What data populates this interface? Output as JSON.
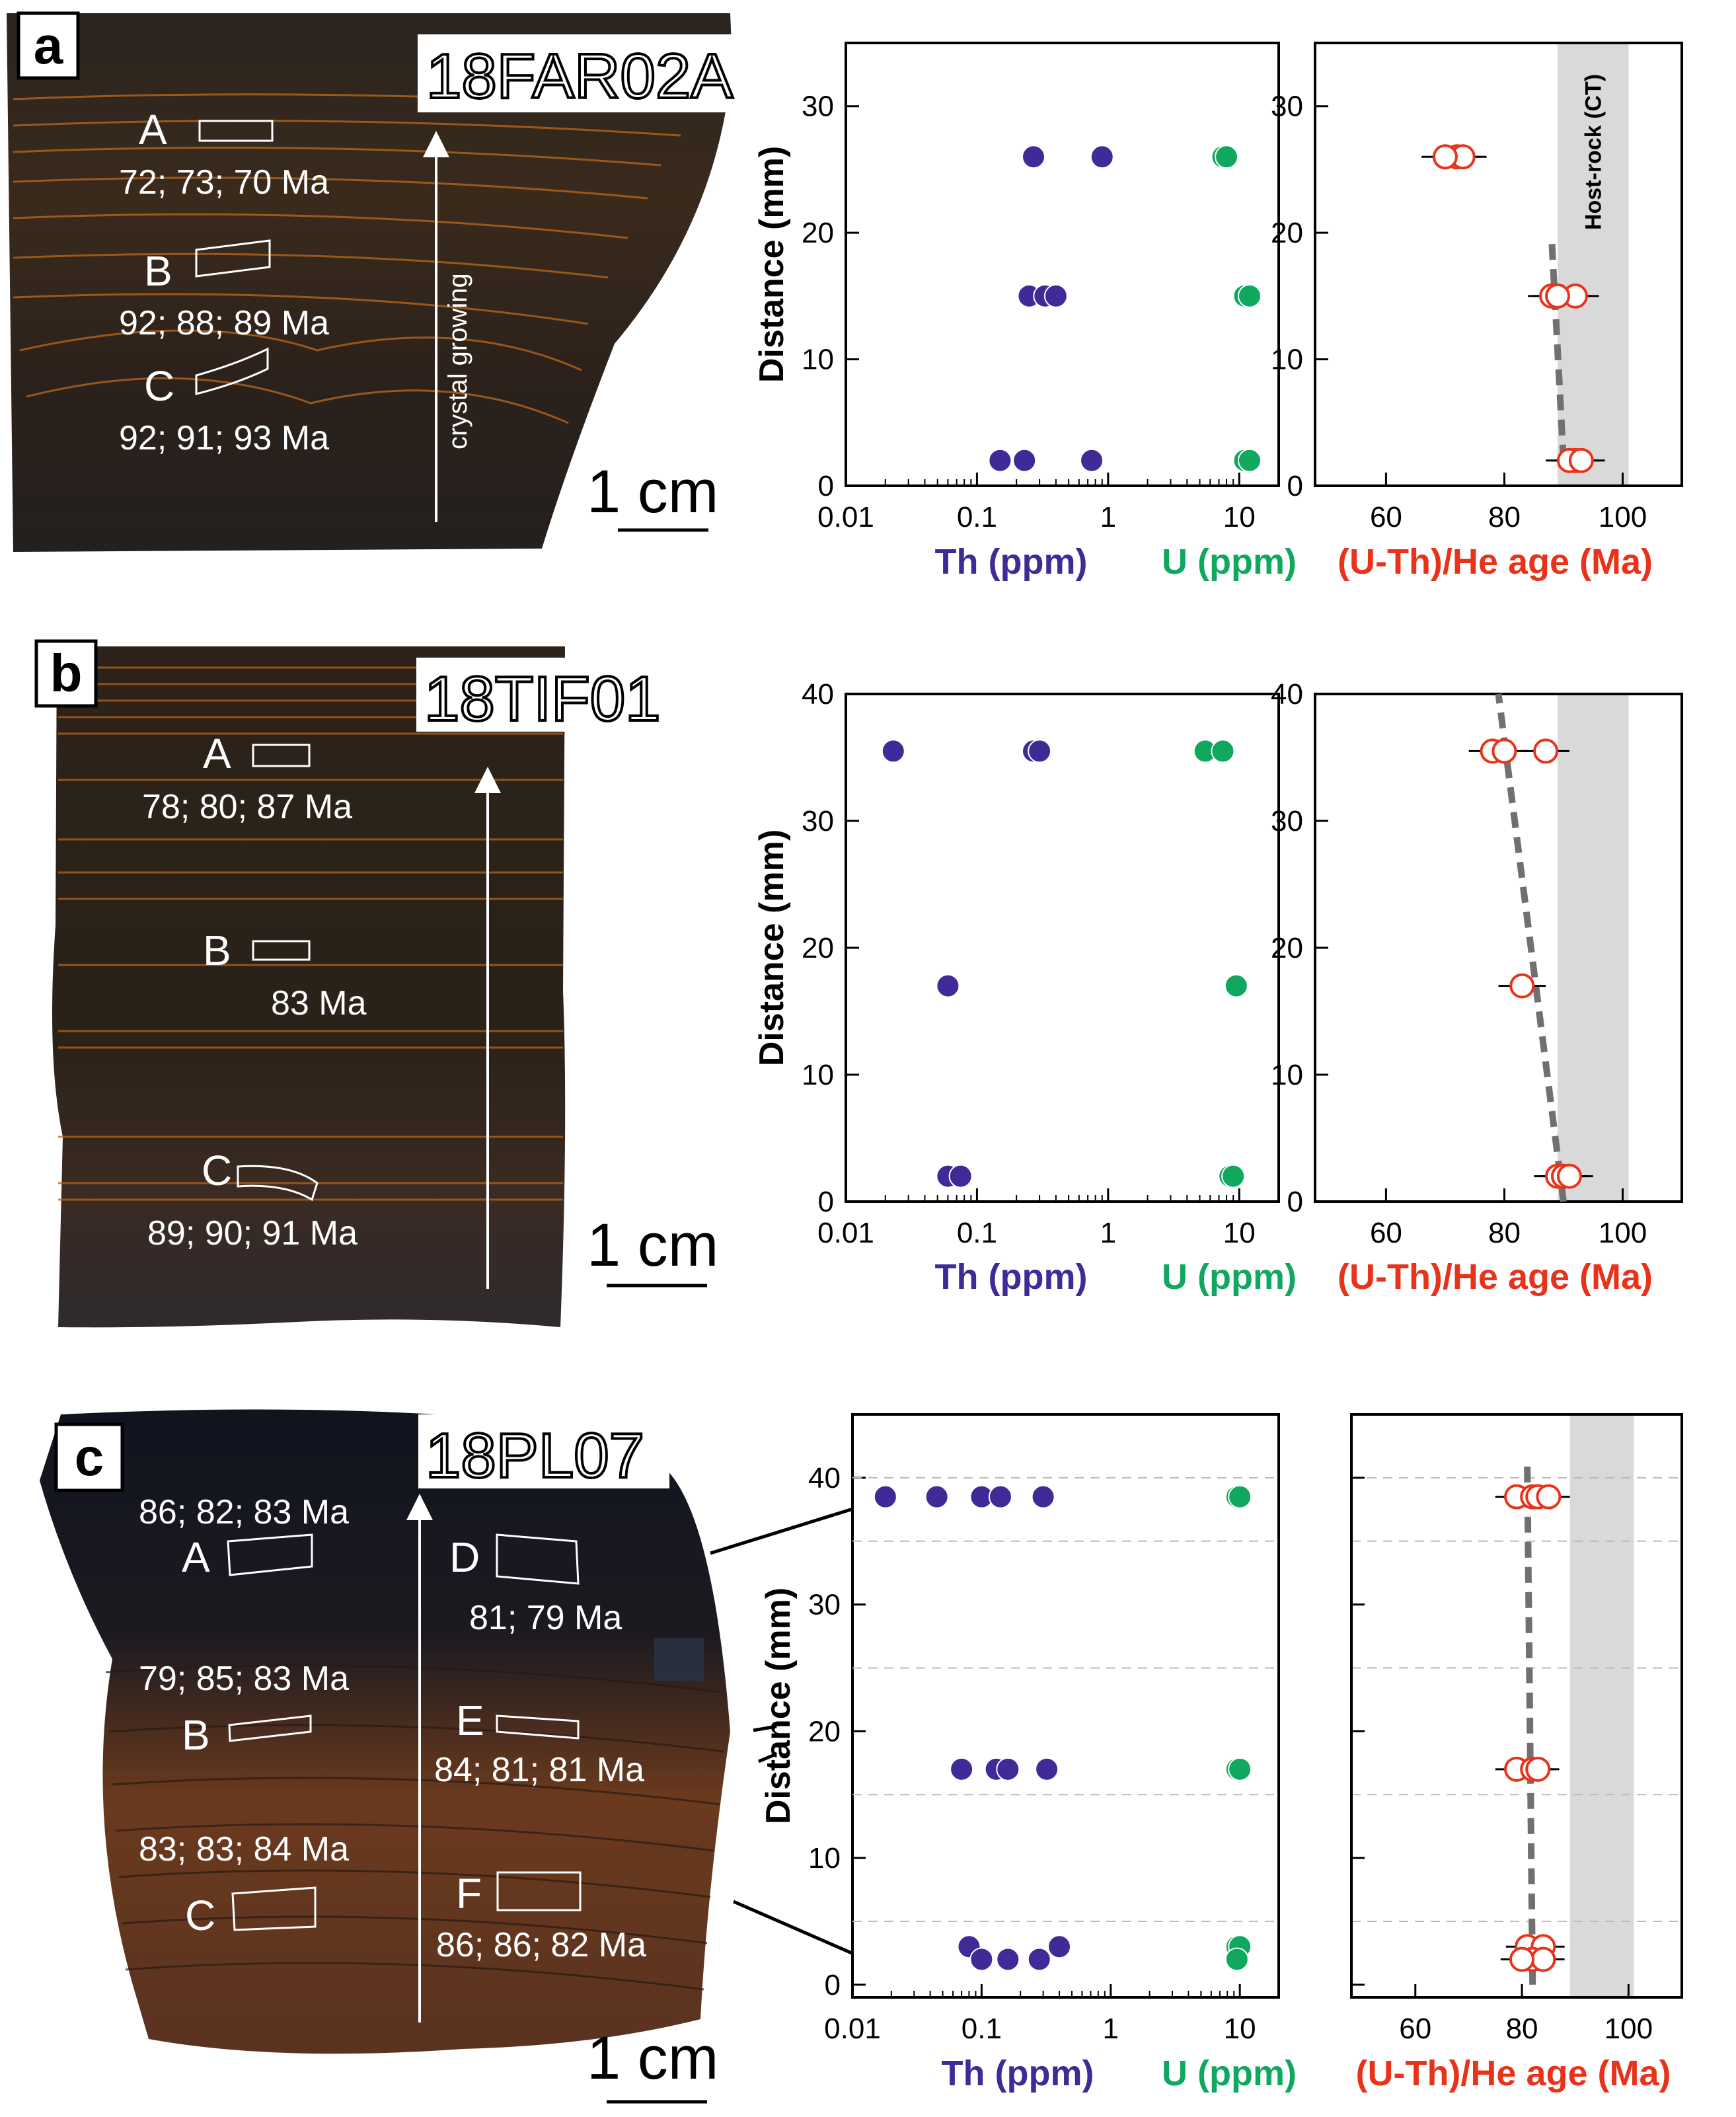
{
  "chart_data": [
    {
      "type": "scatter",
      "panel": "a",
      "sample": "18FAR02A",
      "photo_labels": {
        "regions": [
          {
            "letter": "A",
            "ages": "72; 73; 70 Ma"
          },
          {
            "letter": "B",
            "ages": "92; 88; 89 Ma"
          },
          {
            "letter": "C",
            "ages": "92; 91; 93 Ma"
          }
        ],
        "arrow_label": "crystal growing",
        "scale_bar": "1 cm"
      },
      "concentration_plot": {
        "xscale": "log",
        "xlim": [
          0.01,
          20
        ],
        "ylim": [
          0,
          35
        ],
        "ylabel": "Distance (mm)",
        "xticks": [
          "0.01",
          "0.1",
          "1",
          "10"
        ],
        "yticks": [
          0,
          10,
          20,
          30
        ],
        "series": [
          {
            "name": "Th (ppm)",
            "color": "#3f2a98",
            "points": [
              [
                0.27,
                26
              ],
              [
                0.9,
                26
              ],
              [
                0.25,
                15
              ],
              [
                0.33,
                15
              ],
              [
                0.4,
                15
              ],
              [
                0.15,
                2
              ],
              [
                0.23,
                2
              ],
              [
                0.75,
                2
              ]
            ]
          },
          {
            "name": "U (ppm)",
            "color": "#10a85f",
            "points": [
              [
                7.5,
                26
              ],
              [
                8.0,
                26
              ],
              [
                11,
                15
              ],
              [
                12,
                15
              ],
              [
                11,
                2
              ],
              [
                12,
                2
              ]
            ]
          }
        ]
      },
      "age_plot": {
        "xlim": [
          48,
          110
        ],
        "ylim": [
          0,
          35
        ],
        "xticks": [
          60,
          80,
          100
        ],
        "yticks": [
          0,
          10,
          20,
          30
        ],
        "xlabel": "(U-Th)/He age (Ma)",
        "band": {
          "from": 89,
          "to": 101,
          "label": "Host-rock (CT)"
        },
        "trend": [
          [
            90,
            2
          ],
          [
            88,
            19.5
          ]
        ],
        "points": [
          {
            "age": 72,
            "y": 26,
            "err": 4
          },
          {
            "age": 73,
            "y": 26,
            "err": 4
          },
          {
            "age": 70,
            "y": 26,
            "err": 4
          },
          {
            "age": 92,
            "y": 15,
            "err": 4
          },
          {
            "age": 88,
            "y": 15,
            "err": 4
          },
          {
            "age": 89,
            "y": 15,
            "err": 4
          },
          {
            "age": 92,
            "y": 2,
            "err": 4
          },
          {
            "age": 91,
            "y": 2,
            "err": 4
          },
          {
            "age": 93,
            "y": 2,
            "err": 4
          }
        ]
      }
    },
    {
      "type": "scatter",
      "panel": "b",
      "sample": "18TIF01",
      "photo_labels": {
        "regions": [
          {
            "letter": "A",
            "ages": "78; 80; 87 Ma"
          },
          {
            "letter": "B",
            "ages": "83 Ma"
          },
          {
            "letter": "C",
            "ages": "89; 90; 91 Ma"
          }
        ],
        "scale_bar": "1 cm"
      },
      "concentration_plot": {
        "xscale": "log",
        "xlim": [
          0.01,
          20
        ],
        "ylim": [
          0,
          40
        ],
        "ylabel": "Distance (mm)",
        "xticks": [
          "0.01",
          "0.1",
          "1",
          "10"
        ],
        "yticks": [
          0,
          10,
          20,
          30,
          40
        ],
        "series": [
          {
            "name": "Th (ppm)",
            "color": "#3f2a98",
            "points": [
              [
                0.023,
                35.5
              ],
              [
                0.27,
                35.5
              ],
              [
                0.3,
                35.5
              ],
              [
                0.06,
                17
              ],
              [
                0.06,
                2
              ],
              [
                0.075,
                2
              ]
            ]
          },
          {
            "name": "U (ppm)",
            "color": "#10a85f",
            "points": [
              [
                5.5,
                35.5
              ],
              [
                7.5,
                35.5
              ],
              [
                9.5,
                17
              ],
              [
                8.5,
                2
              ],
              [
                9.0,
                2
              ]
            ]
          }
        ]
      },
      "age_plot": {
        "xlim": [
          48,
          110
        ],
        "ylim": [
          0,
          40
        ],
        "xticks": [
          60,
          80,
          100
        ],
        "yticks": [
          0,
          10,
          20,
          30,
          40
        ],
        "xlabel": "(U-Th)/He age (Ma)",
        "band": {
          "from": 89,
          "to": 101
        },
        "trend": [
          [
            90,
            0
          ],
          [
            79,
            40
          ]
        ],
        "points": [
          {
            "age": 78,
            "y": 35.5,
            "err": 4
          },
          {
            "age": 80,
            "y": 35.5,
            "err": 4
          },
          {
            "age": 87,
            "y": 35.5,
            "err": 4
          },
          {
            "age": 83,
            "y": 17,
            "err": 4
          },
          {
            "age": 89,
            "y": 2,
            "err": 4
          },
          {
            "age": 90,
            "y": 2,
            "err": 4
          },
          {
            "age": 91,
            "y": 2,
            "err": 4
          }
        ]
      }
    },
    {
      "type": "scatter",
      "panel": "c",
      "sample": "18PL07",
      "photo_labels": {
        "regions": [
          {
            "letter": "A",
            "ages": "86; 82; 83 Ma"
          },
          {
            "letter": "B",
            "ages": "79; 85; 83 Ma"
          },
          {
            "letter": "C",
            "ages": "83; 83; 84 Ma"
          },
          {
            "letter": "D",
            "ages": "81; 79 Ma"
          },
          {
            "letter": "E",
            "ages": "84; 81; 81 Ma"
          },
          {
            "letter": "F",
            "ages": "86; 86; 82 Ma"
          }
        ],
        "scale_bar": "1 cm"
      },
      "concentration_plot": {
        "xscale": "log",
        "xlim": [
          0.01,
          20
        ],
        "ylim": [
          -1,
          45
        ],
        "ylabel": "Distance (mm)",
        "xticks": [
          "0.01",
          "0.1",
          "1",
          "10"
        ],
        "yticks": [
          0,
          10,
          20,
          30,
          40
        ],
        "series": [
          {
            "name": "Th (ppm)",
            "color": "#3f2a98",
            "points": [
              [
                0.018,
                38.5
              ],
              [
                0.045,
                38.5
              ],
              [
                0.1,
                38.5
              ],
              [
                0.14,
                38.5
              ],
              [
                0.3,
                38.5
              ],
              [
                0.07,
                17
              ],
              [
                0.13,
                17
              ],
              [
                0.16,
                17
              ],
              [
                0.32,
                17
              ],
              [
                0.08,
                3
              ],
              [
                0.4,
                3
              ],
              [
                0.1,
                2
              ],
              [
                0.16,
                2
              ],
              [
                0.28,
                2
              ]
            ]
          },
          {
            "name": "U (ppm)",
            "color": "#10a85f",
            "points": [
              [
                9.5,
                38.5
              ],
              [
                10,
                38.5
              ],
              [
                9.5,
                17
              ],
              [
                10,
                17
              ],
              [
                9.5,
                3
              ],
              [
                10,
                3
              ],
              [
                9.5,
                2
              ]
            ]
          }
        ]
      },
      "age_plot": {
        "xlim": [
          48,
          110
        ],
        "ylim": [
          -1,
          45
        ],
        "xticks": [
          60,
          80,
          100
        ],
        "yticks": [
          0,
          10,
          20,
          30,
          40
        ],
        "xlabel": "(U-Th)/He age (Ma)",
        "band": {
          "from": 89,
          "to": 101
        },
        "trend": [
          [
            82,
            0
          ],
          [
            81,
            41
          ]
        ],
        "dashed_grid_y": [
          5,
          15,
          25,
          35,
          40
        ],
        "points": [
          {
            "age": 79,
            "y": 38.5,
            "err": 4
          },
          {
            "age": 82,
            "y": 38.5,
            "err": 4
          },
          {
            "age": 83,
            "y": 38.5,
            "err": 4
          },
          {
            "age": 85,
            "y": 38.5,
            "err": 4
          },
          {
            "age": 79,
            "y": 17,
            "err": 4
          },
          {
            "age": 82,
            "y": 17,
            "err": 4
          },
          {
            "age": 83,
            "y": 17,
            "err": 4
          },
          {
            "age": 81,
            "y": 3,
            "err": 4
          },
          {
            "age": 84,
            "y": 3,
            "err": 4
          },
          {
            "age": 82,
            "y": 2,
            "err": 4
          },
          {
            "age": 84,
            "y": 2,
            "err": 4
          },
          {
            "age": 80,
            "y": 2,
            "err": 4
          }
        ]
      }
    }
  ]
}
